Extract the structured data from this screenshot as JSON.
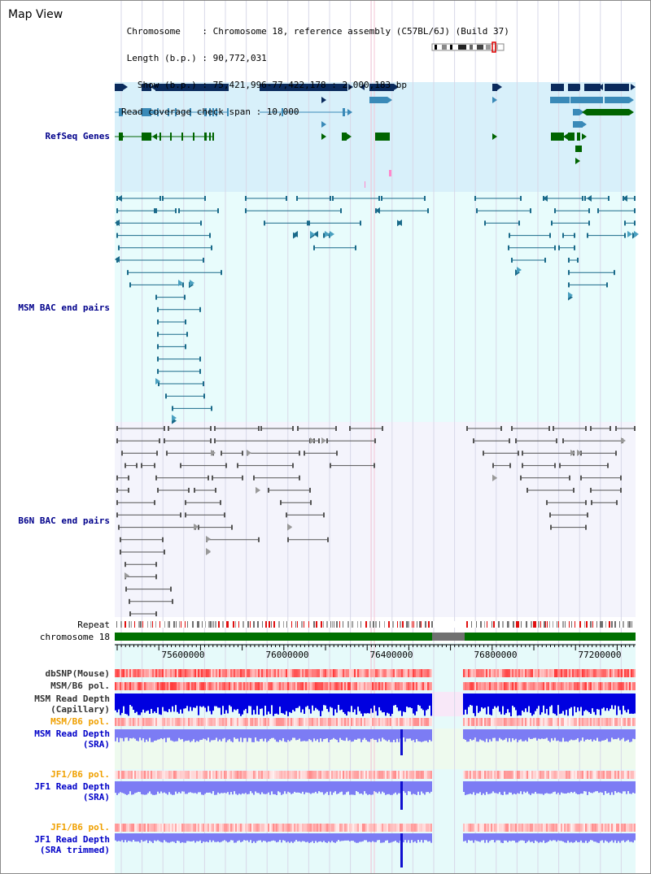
{
  "page": {
    "title": "Map View"
  },
  "info": {
    "lines": [
      " Chromosome    : Chromosome 18, reference assembly (C57BL/6J) (Build 37)",
      " Length (b.p.) : 90,772,031",
      "   Show (b.p.) : 75,421,996-77,422,178 : 2,000,183 bp",
      "Read coverage check span : 10,000"
    ]
  },
  "tracks": {
    "refseq": {
      "label": "RefSeq Genes",
      "color": "#00008b"
    },
    "msm_bac": {
      "label": "MSM BAC end pairs",
      "color": "#00008b"
    },
    "b6n_bac": {
      "label": "B6N BAC end pairs",
      "color": "#00008b"
    },
    "repeat": {
      "label": "Repeat"
    },
    "chromosome": {
      "label": "chromosome 18"
    },
    "dbsnp": {
      "label": "dbSNP(Mouse)"
    },
    "msm_b6_pol_1": {
      "label": "MSM/B6 pol."
    },
    "msm_depth_cap": {
      "label": "MSM Read Depth\n(Capillary)"
    },
    "msm_b6_pol_2": {
      "label": "MSM/B6 pol.",
      "color": "#f0a000"
    },
    "msm_depth_sra": {
      "label": "MSM Read Depth\n(SRA)",
      "color": "#0000c8"
    },
    "jf1_b6_pol_1": {
      "label": "JF1/B6 pol.",
      "color": "#f0a000"
    },
    "jf1_depth_sra": {
      "label": "JF1 Read Depth\n(SRA)",
      "color": "#0000c8"
    },
    "jf1_b6_pol_2": {
      "label": "JF1/B6 pol.",
      "color": "#f0a000"
    },
    "jf1_depth_trim": {
      "label": "JF1 Read Depth\n(SRA trimmed)",
      "color": "#0000c8"
    }
  },
  "axis": {
    "ticks": [
      "75600000",
      "76000000",
      "76400000",
      "76800000",
      "77200000"
    ]
  },
  "colors": {
    "refseq_bg": "#d8f0fa",
    "bac_bg": "#e8fcfc",
    "b6n_bg": "#f4f4fc",
    "gene_dark": "#0a2a5c",
    "gene_mid": "#3a8ab8",
    "gene_green": "#006400",
    "msm_pair": "#1a6a8a",
    "b6n_pair": "#555555",
    "chrom_green": "#007000",
    "depth_dark": "#0000e0",
    "depth_light": "#7c7cf4"
  }
}
